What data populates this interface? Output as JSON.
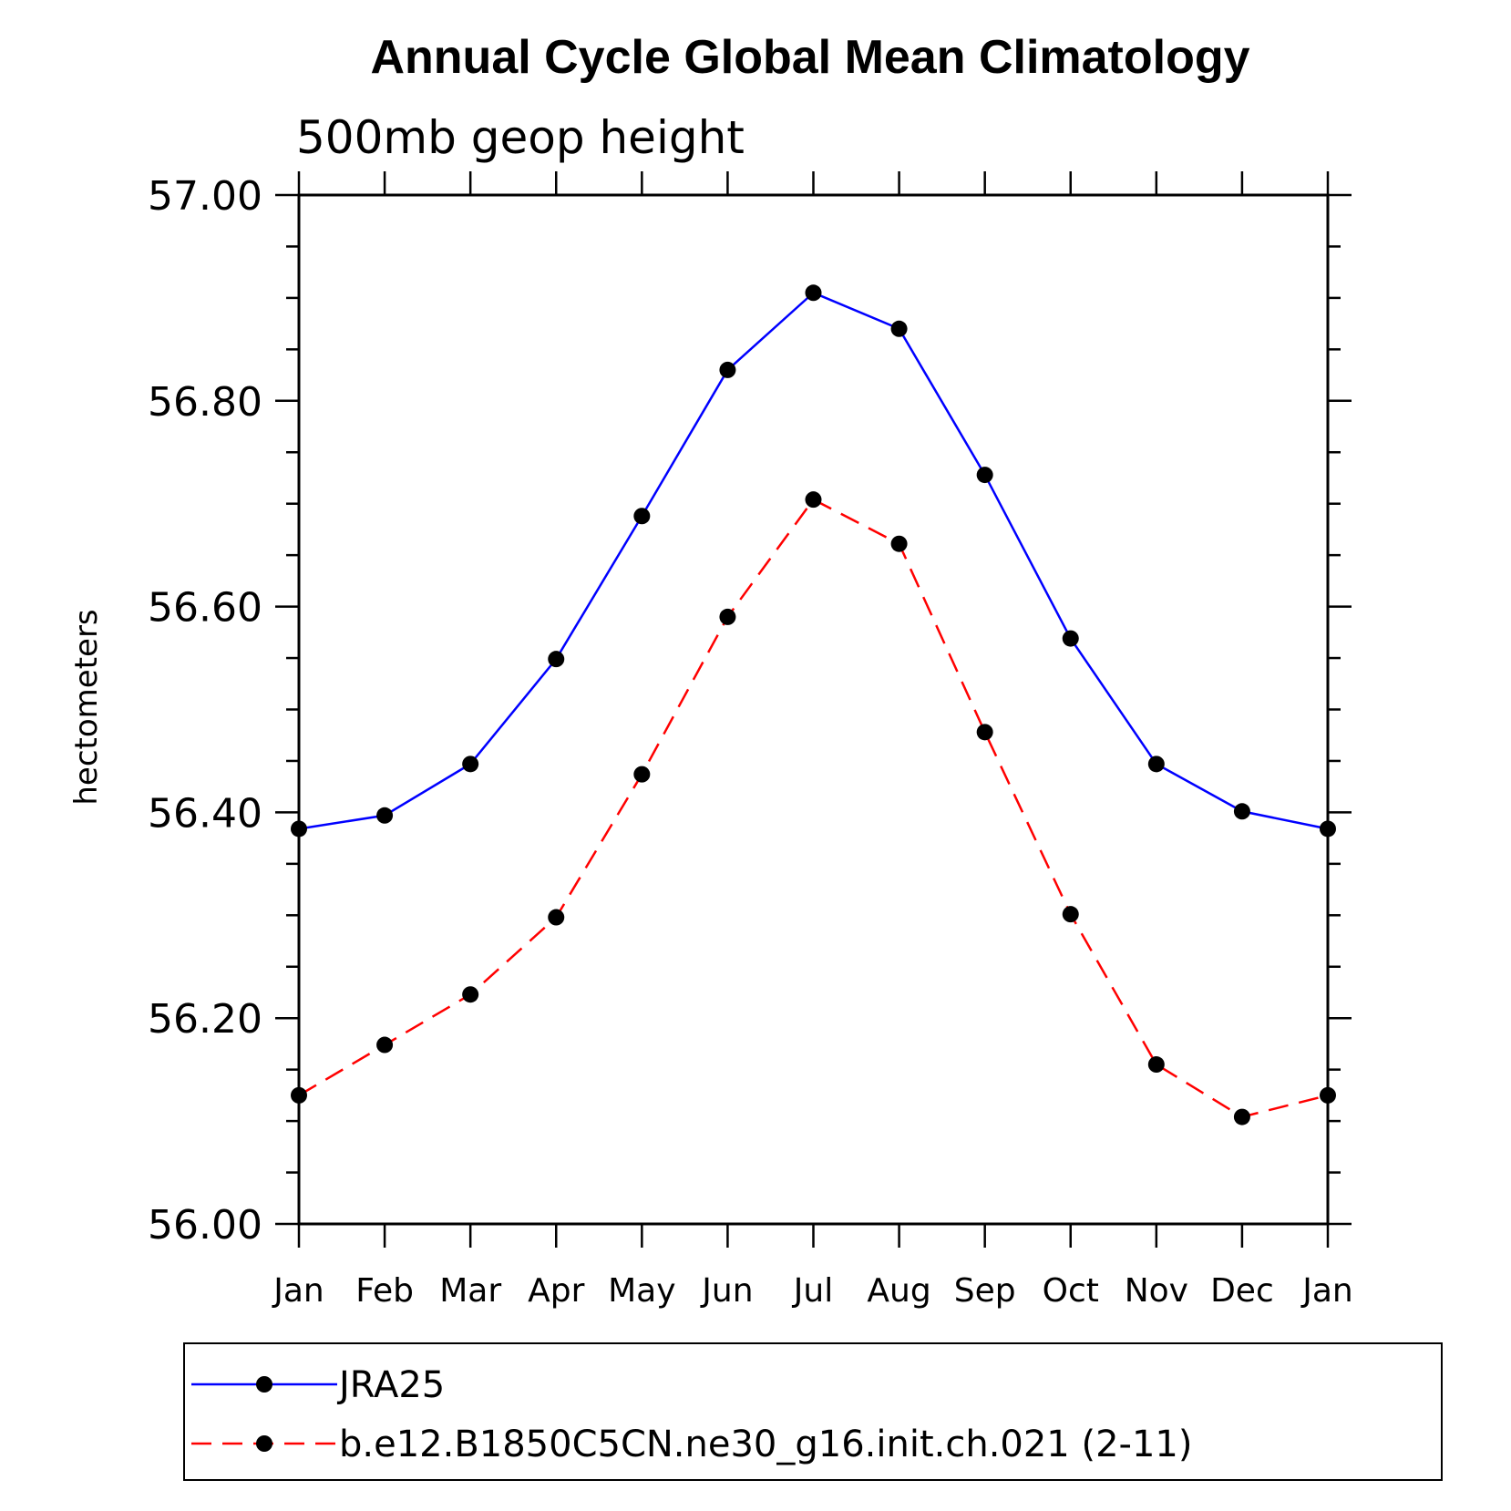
{
  "chart_data": {
    "type": "line",
    "title": "Annual Cycle Global Mean Climatology",
    "subtitle": "500mb geop height",
    "ylabel": "hectometers",
    "xlabel": "",
    "categories": [
      "Jan",
      "Feb",
      "Mar",
      "Apr",
      "May",
      "Jun",
      "Jul",
      "Aug",
      "Sep",
      "Oct",
      "Nov",
      "Dec",
      "Jan"
    ],
    "ylim": [
      56.0,
      57.0
    ],
    "y_ticks": [
      "56.00",
      "56.20",
      "56.40",
      "56.60",
      "56.80",
      "57.00"
    ],
    "grid": false,
    "legend_position": "bottom",
    "series": [
      {
        "name": "JRA25",
        "color": "#0000ff",
        "line_style": "solid",
        "marker": "filled-circle",
        "values": [
          56.384,
          56.397,
          56.447,
          56.549,
          56.688,
          56.83,
          56.905,
          56.87,
          56.728,
          56.569,
          56.447,
          56.401,
          56.384
        ]
      },
      {
        "name": "b.e12.B1850C5CN.ne30_g16.init.ch.021 (2-11)",
        "color": "#ff0000",
        "line_style": "dashed",
        "marker": "filled-circle",
        "values": [
          56.125,
          56.174,
          56.223,
          56.298,
          56.437,
          56.59,
          56.704,
          56.661,
          56.478,
          56.301,
          56.155,
          56.104,
          56.125
        ]
      }
    ]
  }
}
